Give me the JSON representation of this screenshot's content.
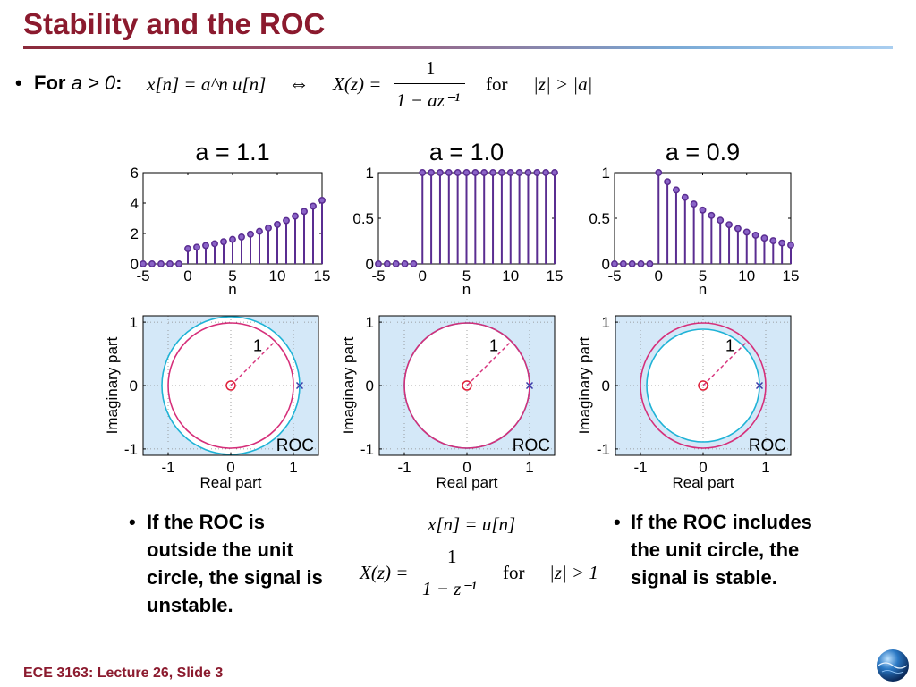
{
  "slide": {
    "title": "Stability and the ROC",
    "footer": "ECE 3163: Lecture 26, Slide 3"
  },
  "intro": {
    "bullet": "•",
    "for_label": "For",
    "condition_var": "a",
    "condition_rest": " > 0",
    "colon": ":",
    "signal_eq": "x[n] = a^n u[n]",
    "iff_symbol": "⇔",
    "transform_lhs": "X(z) =",
    "transform_num": "1",
    "transform_den": "1 − az⁻¹",
    "for_word": "for",
    "roc_condition": "|z| > |a|"
  },
  "chart_data": [
    {
      "type": "stem",
      "title": "a = 1.1",
      "xlabel": "n",
      "ylabel": "",
      "xlim": [
        -5,
        15
      ],
      "ylim": [
        0,
        6
      ],
      "xticks": [
        -5,
        0,
        5,
        10,
        15
      ],
      "yticks": [
        0,
        2,
        4,
        6
      ],
      "x": [
        -5,
        -4,
        -3,
        -2,
        -1,
        0,
        1,
        2,
        3,
        4,
        5,
        6,
        7,
        8,
        9,
        10,
        11,
        12,
        13,
        14,
        15
      ],
      "y": [
        0,
        0,
        0,
        0,
        0,
        1.0,
        1.1,
        1.21,
        1.33,
        1.46,
        1.61,
        1.77,
        1.95,
        2.14,
        2.36,
        2.59,
        2.85,
        3.14,
        3.45,
        3.8,
        4.18
      ],
      "color": "#5a2d91"
    },
    {
      "type": "stem",
      "title": "a = 1.0",
      "xlabel": "n",
      "ylabel": "",
      "xlim": [
        -5,
        15
      ],
      "ylim": [
        0,
        1
      ],
      "xticks": [
        -5,
        0,
        5,
        10,
        15
      ],
      "yticks": [
        0,
        0.5,
        1
      ],
      "x": [
        -5,
        -4,
        -3,
        -2,
        -1,
        0,
        1,
        2,
        3,
        4,
        5,
        6,
        7,
        8,
        9,
        10,
        11,
        12,
        13,
        14,
        15
      ],
      "y": [
        0,
        0,
        0,
        0,
        0,
        1,
        1,
        1,
        1,
        1,
        1,
        1,
        1,
        1,
        1,
        1,
        1,
        1,
        1,
        1,
        1
      ],
      "color": "#5a2d91"
    },
    {
      "type": "stem",
      "title": "a = 0.9",
      "xlabel": "n",
      "ylabel": "",
      "xlim": [
        -5,
        15
      ],
      "ylim": [
        0,
        1
      ],
      "xticks": [
        -5,
        0,
        5,
        10,
        15
      ],
      "yticks": [
        0,
        0.5,
        1
      ],
      "x": [
        -5,
        -4,
        -3,
        -2,
        -1,
        0,
        1,
        2,
        3,
        4,
        5,
        6,
        7,
        8,
        9,
        10,
        11,
        12,
        13,
        14,
        15
      ],
      "y": [
        0,
        0,
        0,
        0,
        0,
        1.0,
        0.9,
        0.81,
        0.729,
        0.656,
        0.59,
        0.531,
        0.478,
        0.43,
        0.387,
        0.349,
        0.314,
        0.282,
        0.254,
        0.229,
        0.206
      ],
      "color": "#5a2d91"
    },
    {
      "type": "pole-zero",
      "xlabel": "Real part",
      "ylabel": "Imaginary part",
      "xlim": [
        -1.4,
        1.4
      ],
      "ylim": [
        -1.1,
        1.1
      ],
      "xticks": [
        -1,
        0,
        1
      ],
      "yticks": [
        -1,
        0,
        1
      ],
      "zeros": [
        [
          0,
          0
        ]
      ],
      "poles": [
        [
          1.1,
          0
        ]
      ],
      "unit_circle_radius": 1,
      "roc_circle_radius": 1.1,
      "radius_label": "1",
      "roc_label": "ROC",
      "roc_fill": "#d4e8f8",
      "unit_circle_color": "#d62f7a",
      "roc_circle_color": "#1fb3d6"
    },
    {
      "type": "pole-zero",
      "xlabel": "Real part",
      "ylabel": "Imaginary part",
      "xlim": [
        -1.4,
        1.4
      ],
      "ylim": [
        -1.1,
        1.1
      ],
      "xticks": [
        -1,
        0,
        1
      ],
      "yticks": [
        -1,
        0,
        1
      ],
      "zeros": [
        [
          0,
          0
        ]
      ],
      "poles": [
        [
          1.0,
          0
        ]
      ],
      "unit_circle_radius": 1,
      "roc_circle_radius": 1.0,
      "radius_label": "1",
      "roc_label": "ROC",
      "roc_fill": "#d4e8f8",
      "unit_circle_color": "#d62f7a",
      "roc_circle_color": "#1fb3d6"
    },
    {
      "type": "pole-zero",
      "xlabel": "Real part",
      "ylabel": "Imaginary part",
      "xlim": [
        -1.4,
        1.4
      ],
      "ylim": [
        -1.1,
        1.1
      ],
      "xticks": [
        -1,
        0,
        1
      ],
      "yticks": [
        -1,
        0,
        1
      ],
      "zeros": [
        [
          0,
          0
        ]
      ],
      "poles": [
        [
          0.9,
          0
        ]
      ],
      "unit_circle_radius": 1,
      "roc_circle_radius": 0.9,
      "radius_label": "1",
      "roc_label": "ROC",
      "roc_fill": "#d4e8f8",
      "unit_circle_color": "#d62f7a",
      "roc_circle_color": "#1fb3d6"
    }
  ],
  "bullets": {
    "left": "If the ROC is outside the unit circle, the signal is unstable.",
    "right": "If the ROC includes the unit circle, the signal is stable.",
    "dot": "•"
  },
  "middle_formula": {
    "signal_eq": "x[n] = u[n]",
    "transform_lhs": "X(z) =",
    "transform_num": "1",
    "transform_den": "1 − z⁻¹",
    "for_word": "for",
    "roc_condition": "|z| > 1"
  }
}
